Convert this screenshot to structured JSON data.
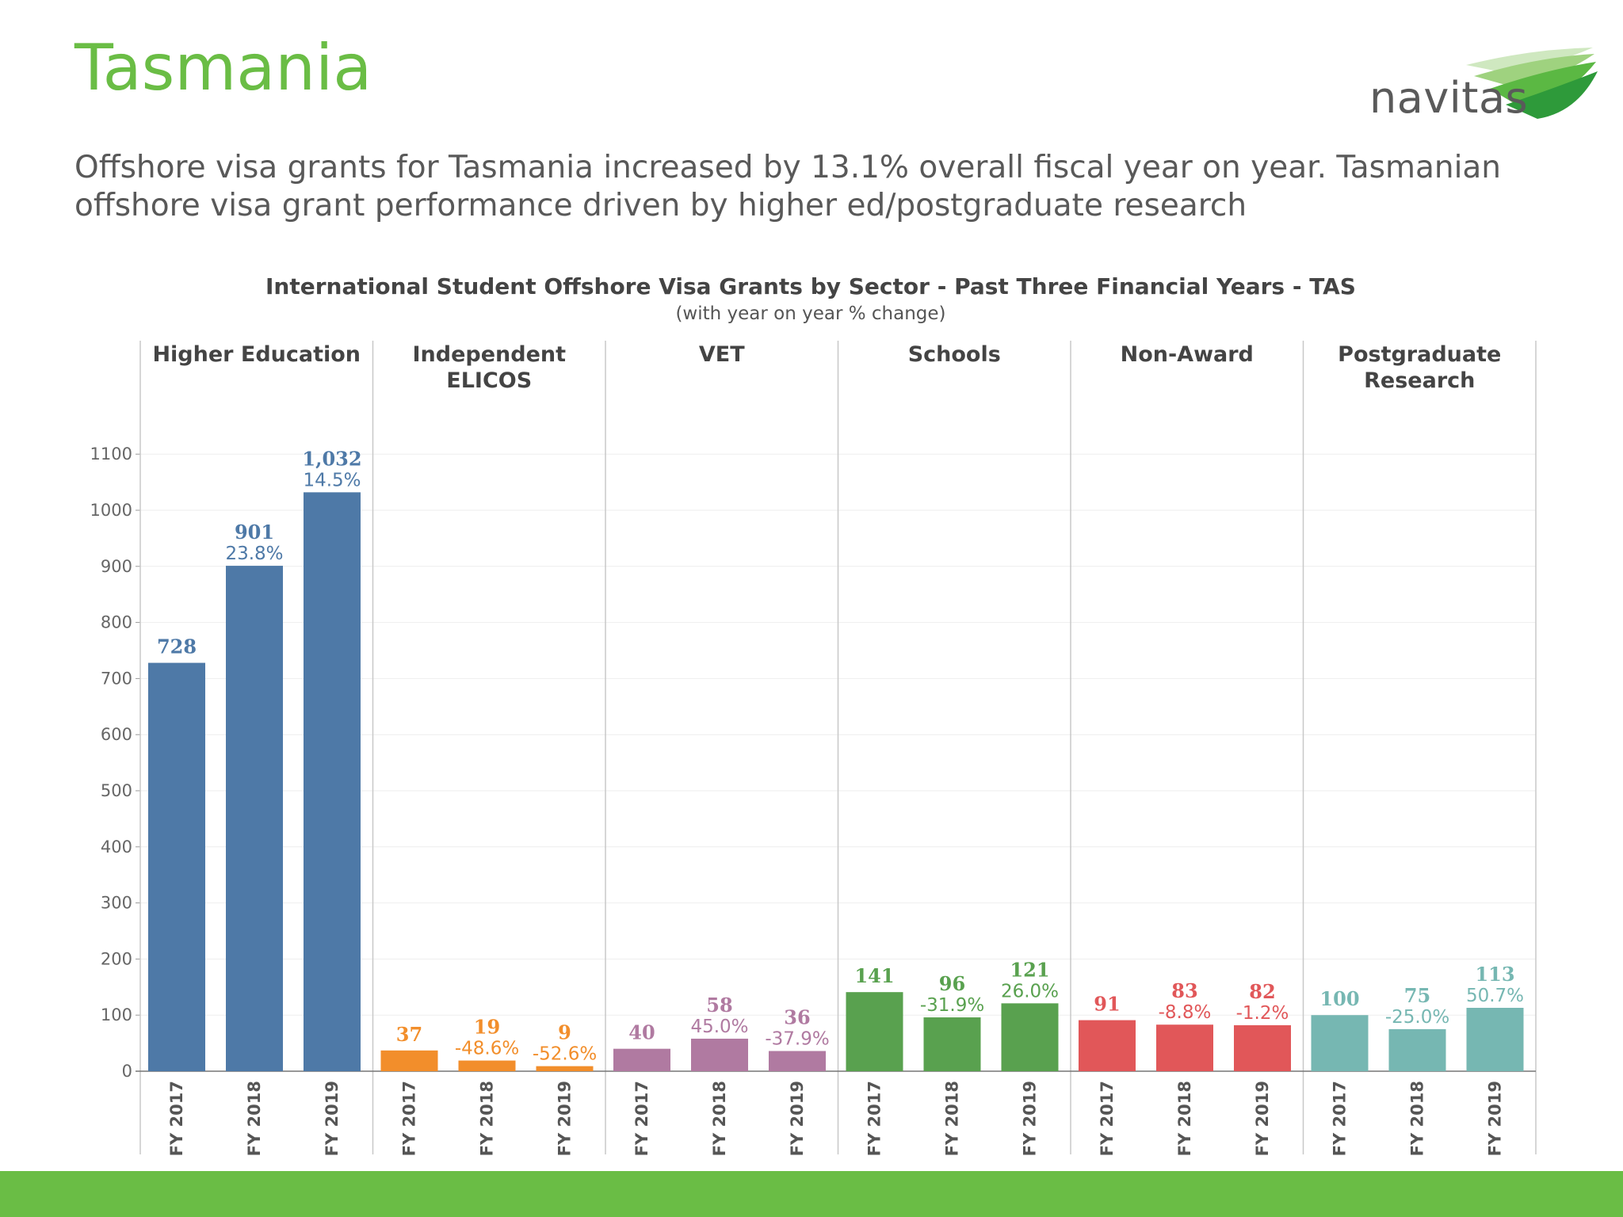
{
  "slide": {
    "title": "Tasmania",
    "subtitle": "Offshore visa grants for Tasmania increased by 13.1% overall fiscal year on year. Tasmanian offshore visa grant performance driven by higher ed/postgraduate research",
    "logo_text": "navitas",
    "brand_color": "#6abd45"
  },
  "chart_data": {
    "type": "bar",
    "title": "International Student Offshore Visa Grants by Sector - Past Three Financial Years - TAS",
    "subtitle": "(with year on year % change)",
    "ylim": [
      0,
      1150
    ],
    "yticks": [
      0,
      100,
      200,
      300,
      400,
      500,
      600,
      700,
      800,
      900,
      1000,
      1100
    ],
    "grid": true,
    "categories": [
      "FY 2017",
      "FY 2018",
      "FY 2019"
    ],
    "panels": [
      {
        "name": [
          "Higher Education"
        ],
        "color": "#4e79a7",
        "values": [
          728,
          901,
          1032
        ],
        "value_labels": [
          "728",
          "901",
          "1,032"
        ],
        "pct_changes": [
          "",
          "23.8%",
          "14.5%"
        ]
      },
      {
        "name": [
          "Independent",
          "ELICOS"
        ],
        "color": "#f28e2b",
        "values": [
          37,
          19,
          9
        ],
        "value_labels": [
          "37",
          "19",
          "9"
        ],
        "pct_changes": [
          "",
          "-48.6%",
          "-52.6%"
        ]
      },
      {
        "name": [
          "VET"
        ],
        "color": "#b07aa1",
        "values": [
          40,
          58,
          36
        ],
        "value_labels": [
          "40",
          "58",
          "36"
        ],
        "pct_changes": [
          "",
          "45.0%",
          "-37.9%"
        ]
      },
      {
        "name": [
          "Schools"
        ],
        "color": "#59a14f",
        "values": [
          141,
          96,
          121
        ],
        "value_labels": [
          "141",
          "96",
          "121"
        ],
        "pct_changes": [
          "",
          "-31.9%",
          "26.0%"
        ]
      },
      {
        "name": [
          "Non-Award"
        ],
        "color": "#e15759",
        "values": [
          91,
          83,
          82
        ],
        "value_labels": [
          "91",
          "83",
          "82"
        ],
        "pct_changes": [
          "",
          "-8.8%",
          "-1.2%"
        ]
      },
      {
        "name": [
          "Postgraduate",
          "Research"
        ],
        "color": "#76b7b2",
        "values": [
          100,
          75,
          113
        ],
        "value_labels": [
          "100",
          "75",
          "113"
        ],
        "pct_changes": [
          "",
          "-25.0%",
          "50.7%"
        ]
      }
    ]
  }
}
